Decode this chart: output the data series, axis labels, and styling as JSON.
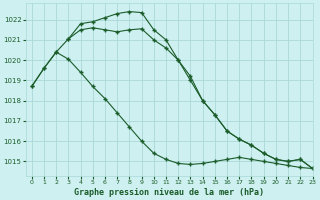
{
  "title": "Graphe pression niveau de la mer (hPa)",
  "bg_color": "#cef0f0",
  "grid_color": "#aad8d8",
  "line_color": "#1a5c2a",
  "xlim": [
    -0.5,
    23
  ],
  "ylim": [
    1014.3,
    1022.8
  ],
  "yticks": [
    1015,
    1016,
    1017,
    1018,
    1019,
    1020,
    1021,
    1022
  ],
  "xticks": [
    0,
    1,
    2,
    3,
    4,
    5,
    6,
    7,
    8,
    9,
    10,
    11,
    12,
    13,
    14,
    15,
    16,
    17,
    18,
    19,
    20,
    21,
    22,
    23
  ],
  "series1_x": [
    0,
    1,
    2,
    3,
    4,
    5,
    6,
    7,
    8,
    9,
    10,
    11,
    12,
    13,
    14,
    15,
    16,
    17,
    18,
    19,
    20,
    21,
    22,
    23
  ],
  "series1_y": [
    1018.7,
    1019.6,
    1020.4,
    1021.05,
    1021.8,
    1021.9,
    1022.1,
    1022.3,
    1022.4,
    1022.35,
    1021.5,
    1021.0,
    1020.0,
    1019.0,
    1018.0,
    1017.3,
    1016.5,
    1016.1,
    1015.8,
    1015.4,
    1015.1,
    1015.0,
    1015.1,
    1014.65
  ],
  "series2_x": [
    0,
    1,
    2,
    3,
    4,
    5,
    6,
    7,
    8,
    9,
    10,
    11,
    12,
    13,
    14,
    15,
    16,
    17,
    18,
    19,
    20,
    21,
    22,
    23
  ],
  "series2_y": [
    1018.7,
    1019.6,
    1020.4,
    1020.05,
    1019.4,
    1018.7,
    1018.1,
    1017.4,
    1016.7,
    1016.0,
    1015.4,
    1015.1,
    1014.9,
    1014.85,
    1014.9,
    1015.0,
    1015.1,
    1015.2,
    1015.1,
    1015.0,
    1014.9,
    1014.8,
    1014.7,
    1014.65
  ],
  "series3_x": [
    3,
    4,
    5,
    6,
    7,
    8,
    9,
    10,
    11,
    12,
    13,
    14,
    15,
    16,
    17,
    18,
    19,
    20,
    21,
    22,
    23
  ],
  "series3_y": [
    1021.05,
    1021.5,
    1021.6,
    1021.5,
    1021.4,
    1021.5,
    1021.55,
    1021.0,
    1020.6,
    1020.0,
    1019.2,
    1018.0,
    1017.3,
    1016.5,
    1016.1,
    1015.8,
    1015.4,
    1015.1,
    1015.0,
    1015.1,
    1014.65
  ]
}
